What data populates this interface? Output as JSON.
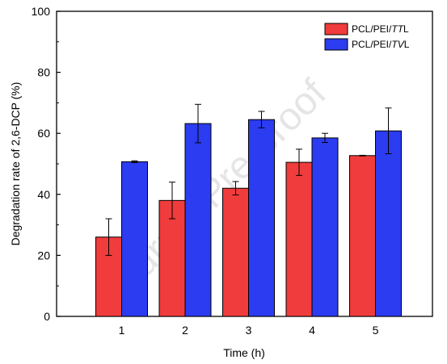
{
  "watermark": "Journal Pre-proof",
  "chart_data": {
    "type": "bar",
    "xlabel": "Time (h)",
    "ylabel": "Degradation rate of 2,6-DCP (%)",
    "categories": [
      "1",
      "2",
      "3",
      "4",
      "5"
    ],
    "ylim": [
      0,
      100
    ],
    "yticks": [
      "0",
      "20",
      "40",
      "60",
      "80",
      "100"
    ],
    "legend_position": "top-right",
    "series": [
      {
        "name": "PCL/PEI/TTL",
        "name_prefix": "PCL/PEI/",
        "name_italic": "TT",
        "name_suffix": "L",
        "color": "#f03c3c",
        "values": [
          26,
          38,
          42,
          50.5,
          52.7
        ],
        "errors": [
          6,
          6,
          2.2,
          4.3,
          0.1
        ]
      },
      {
        "name": "PCL/PEI/TVL",
        "name_prefix": "PCL/PEI/",
        "name_italic": "TV",
        "name_suffix": "L",
        "color": "#2c3cf0",
        "values": [
          50.7,
          63.2,
          64.5,
          58.5,
          60.8
        ],
        "errors": [
          0.3,
          6.3,
          2.7,
          1.5,
          7.5
        ]
      }
    ]
  }
}
